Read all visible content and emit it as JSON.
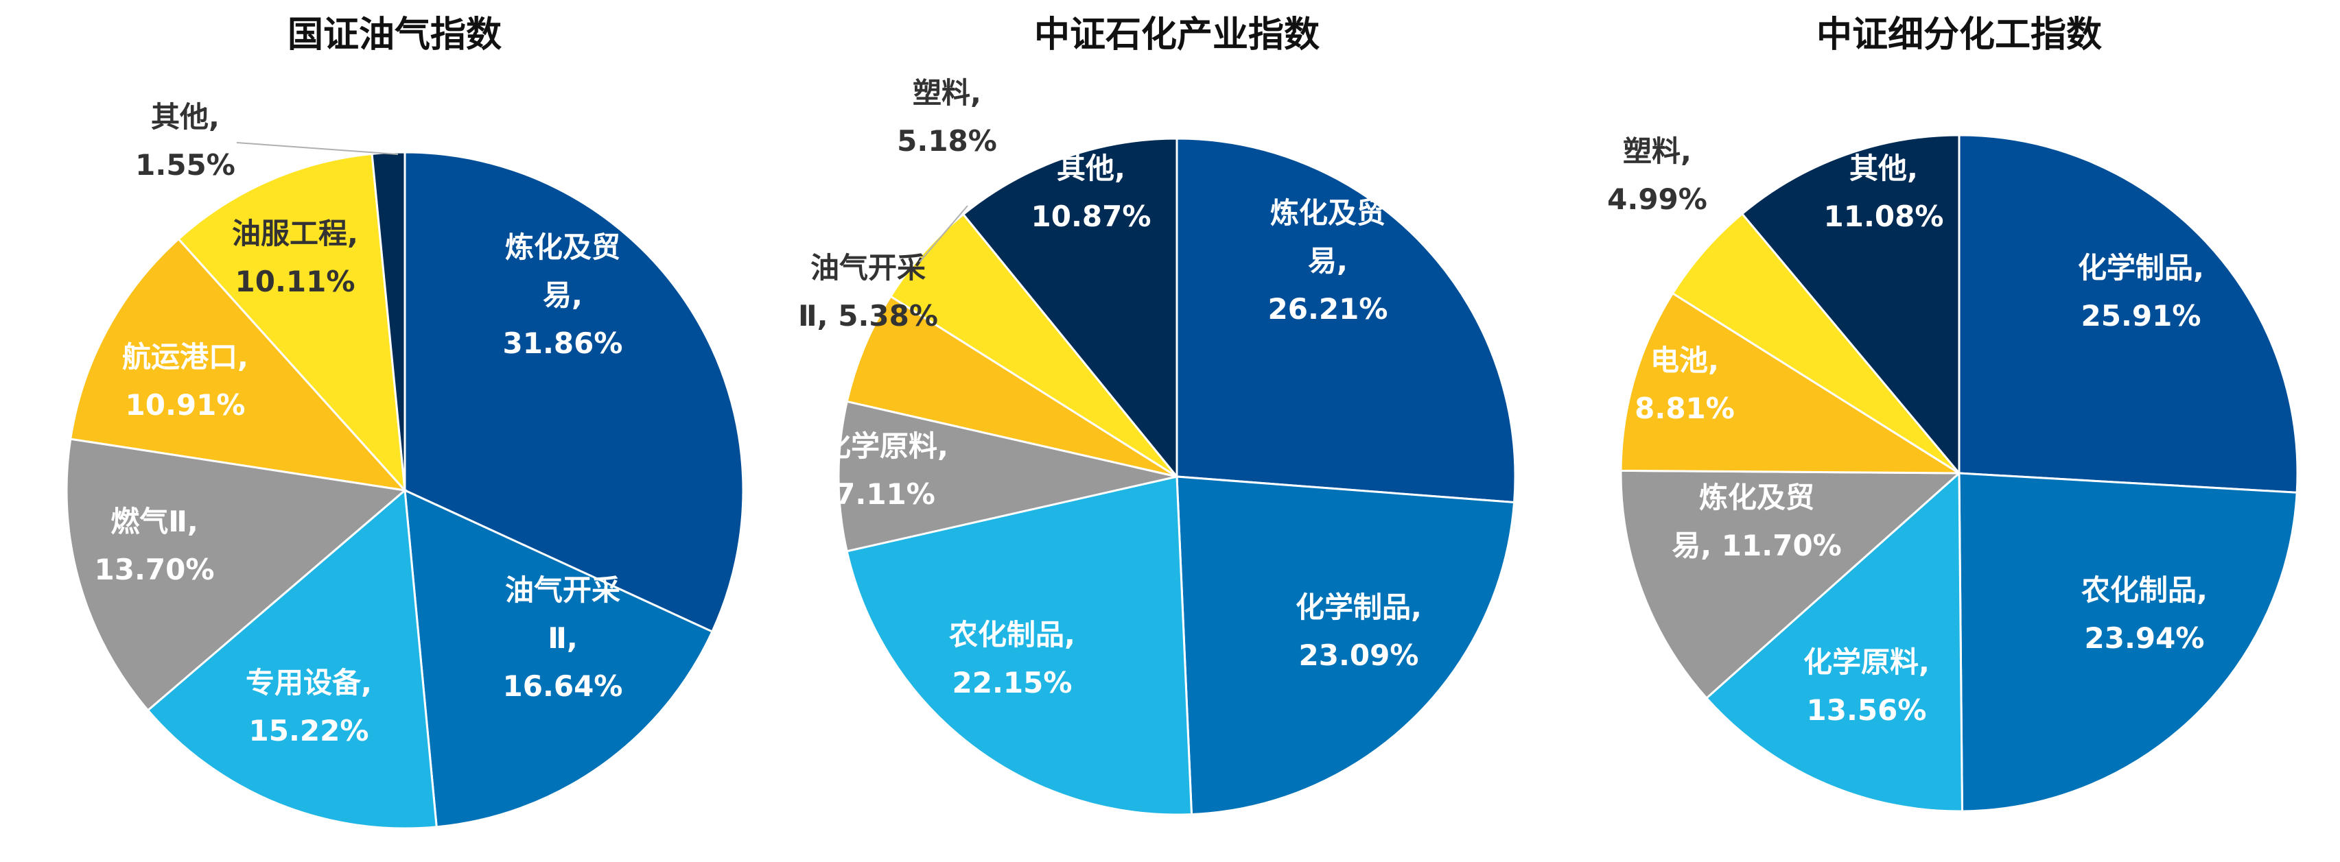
{
  "chart_data": [
    {
      "type": "pie",
      "title": "国证油气指数",
      "slices": [
        {
          "name": "炼化及贸易",
          "label_lines": [
            "炼化及贸",
            "易,",
            "31.86%"
          ],
          "value": 31.86,
          "color": "#004E98",
          "text_color": "#FFFFFF"
        },
        {
          "name": "油气开采Ⅱ",
          "label_lines": [
            "油气开采",
            "Ⅱ,",
            "16.64%"
          ],
          "value": 16.64,
          "color": "#0072B8",
          "text_color": "#FFFFFF"
        },
        {
          "name": "专用设备",
          "label_lines": [
            "专用设备,",
            "15.22%"
          ],
          "value": 15.22,
          "color": "#1FB5E5",
          "text_color": "#FFFFFF"
        },
        {
          "name": "燃气Ⅱ",
          "label_lines": [
            "燃气Ⅱ,",
            "13.70%"
          ],
          "value": 13.7,
          "color": "#999999",
          "text_color": "#FFFFFF"
        },
        {
          "name": "航运港口",
          "label_lines": [
            "航运港口,",
            "10.91%"
          ],
          "value": 10.91,
          "color": "#FCC21B",
          "text_color": "#FFFFFF"
        },
        {
          "name": "油服工程",
          "label_lines": [
            "油服工程,",
            "10.11%"
          ],
          "value": 10.11,
          "color": "#FFE423",
          "text_color": "#333333"
        },
        {
          "name": "其他",
          "label_lines": [
            "其他,",
            "1.55%"
          ],
          "value": 1.55,
          "color": "#002B55",
          "text_color": "#333333"
        }
      ]
    },
    {
      "type": "pie",
      "title": "中证石化产业指数",
      "slices": [
        {
          "name": "炼化及贸易",
          "label_lines": [
            "炼化及贸",
            "易,",
            "26.21%"
          ],
          "value": 26.21,
          "color": "#004E98",
          "text_color": "#FFFFFF"
        },
        {
          "name": "化学制品",
          "label_lines": [
            "化学制品,",
            "23.09%"
          ],
          "value": 23.09,
          "color": "#0072B8",
          "text_color": "#FFFFFF"
        },
        {
          "name": "农化制品",
          "label_lines": [
            "农化制品,",
            "22.15%"
          ],
          "value": 22.15,
          "color": "#1FB5E5",
          "text_color": "#FFFFFF"
        },
        {
          "name": "化学原料",
          "label_lines": [
            "化学原料,",
            "7.11%"
          ],
          "value": 7.11,
          "color": "#999999",
          "text_color": "#FFFFFF"
        },
        {
          "name": "油气开采Ⅱ",
          "label_lines": [
            "油气开采",
            "Ⅱ, 5.38%"
          ],
          "value": 5.38,
          "color": "#FCC21B",
          "text_color": "#333333"
        },
        {
          "name": "塑料",
          "label_lines": [
            "塑料,",
            "5.18%"
          ],
          "value": 5.18,
          "color": "#FFE423",
          "text_color": "#333333"
        },
        {
          "name": "其他",
          "label_lines": [
            "其他,",
            "10.87%"
          ],
          "value": 10.87,
          "color": "#002B55",
          "text_color": "#FFFFFF"
        }
      ]
    },
    {
      "type": "pie",
      "title": "中证细分化工指数",
      "slices": [
        {
          "name": "化学制品",
          "label_lines": [
            "化学制品,",
            "25.91%"
          ],
          "value": 25.91,
          "color": "#004E98",
          "text_color": "#FFFFFF"
        },
        {
          "name": "农化制品",
          "label_lines": [
            "农化制品,",
            "23.94%"
          ],
          "value": 23.94,
          "color": "#0072B8",
          "text_color": "#FFFFFF"
        },
        {
          "name": "化学原料",
          "label_lines": [
            "化学原料,",
            "13.56%"
          ],
          "value": 13.56,
          "color": "#1FB5E5",
          "text_color": "#FFFFFF"
        },
        {
          "name": "炼化及贸易",
          "label_lines": [
            "炼化及贸",
            "易, 11.70%"
          ],
          "value": 11.7,
          "color": "#999999",
          "text_color": "#FFFFFF"
        },
        {
          "name": "电池",
          "label_lines": [
            "电池,",
            "8.81%"
          ],
          "value": 8.81,
          "color": "#FCC21B",
          "text_color": "#FFFFFF"
        },
        {
          "name": "塑料",
          "label_lines": [
            "塑料,",
            "4.99%"
          ],
          "value": 4.99,
          "color": "#FFE423",
          "text_color": "#333333"
        },
        {
          "name": "其他",
          "label_lines": [
            "其他,",
            "11.08%"
          ],
          "value": 11.08,
          "color": "#002B55",
          "text_color": "#FFFFFF"
        }
      ]
    }
  ]
}
